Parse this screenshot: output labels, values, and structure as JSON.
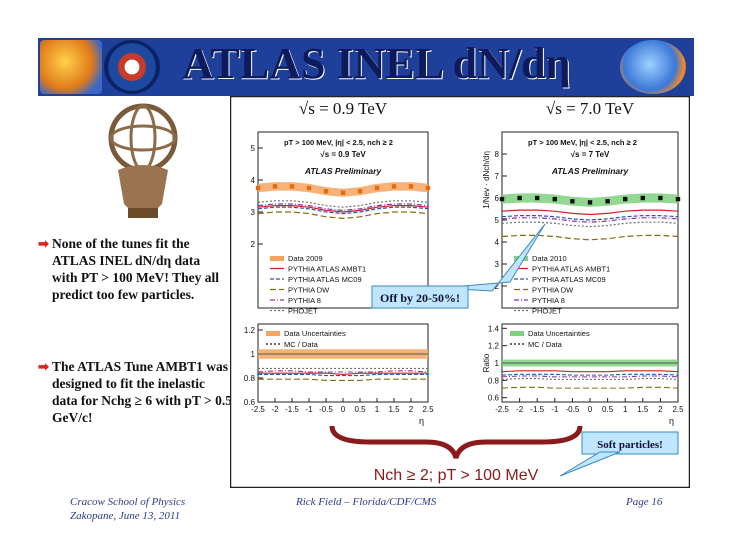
{
  "slide": {
    "title": "ATLAS INEL dN/dη",
    "bullets": [
      "None of the tunes fit the ATLAS INEL dN/dη data with PT > 100 MeV! They all predict too few particles.",
      "The ATLAS Tune AMBT1 was designed to fit the inelastic data for Nchg ≥ 6 with pT > 0.5 GeV/c!"
    ]
  },
  "footer": {
    "left_line1": "Cracow School of Physics",
    "left_line2": "Zakopane, June 13, 2011",
    "center": "Rick Field – Florida/CDF/CMS",
    "right": "Page 16"
  },
  "callouts": {
    "off_by": "Off by 20-50%!",
    "soft": "Soft particles!",
    "brace_label": "Nch ≥ 2; pT > 100 MeV"
  },
  "chart_data": [
    {
      "type": "line",
      "energy_label": "√s = 0.9 TeV",
      "cut_text": "pT > 100 MeV, |η| < 2.5, nch ≥ 2",
      "sqrt_text": "√s = 0.9 TeV",
      "prelim": "ATLAS Preliminary",
      "xlabel": "η",
      "ylabel": "",
      "xlim": [
        -2.5,
        2.5
      ],
      "ylim": [
        0,
        5.5
      ],
      "x": [
        -2.5,
        -2.0,
        -1.5,
        -1.0,
        -0.5,
        0.0,
        0.5,
        1.0,
        1.5,
        2.0,
        2.5
      ],
      "x_ticks": [
        "-2.5",
        "-2",
        "-1.5",
        "-1",
        "-0.5",
        "0",
        "0.5",
        "1",
        "1.5",
        "2",
        "2.5"
      ],
      "y_ticks": [
        "2",
        "3",
        "4",
        "5"
      ],
      "series": [
        {
          "name": "Data 2009",
          "values": [
            3.75,
            3.8,
            3.8,
            3.75,
            3.65,
            3.6,
            3.65,
            3.75,
            3.8,
            3.8,
            3.75
          ]
        },
        {
          "name": "PYTHIA ATLAS AMBT1",
          "values": [
            3.15,
            3.2,
            3.2,
            3.15,
            3.05,
            3.0,
            3.05,
            3.15,
            3.2,
            3.2,
            3.15
          ]
        },
        {
          "name": "PYTHIA ATLAS MC09",
          "values": [
            3.1,
            3.15,
            3.15,
            3.1,
            3.0,
            2.95,
            3.0,
            3.1,
            3.15,
            3.15,
            3.1
          ]
        },
        {
          "name": "PYTHIA DW",
          "values": [
            2.95,
            3.0,
            3.0,
            2.95,
            2.85,
            2.8,
            2.85,
            2.95,
            3.0,
            3.0,
            2.95
          ]
        },
        {
          "name": "PYTHIA 8",
          "values": [
            3.2,
            3.25,
            3.25,
            3.2,
            3.1,
            3.05,
            3.1,
            3.2,
            3.25,
            3.25,
            3.2
          ]
        },
        {
          "name": "PHOJET",
          "values": [
            3.3,
            3.35,
            3.35,
            3.3,
            3.2,
            3.15,
            3.2,
            3.3,
            3.35,
            3.35,
            3.3
          ]
        }
      ],
      "ratio": {
        "ylabel": "",
        "ylim": [
          0.6,
          1.25
        ],
        "y_ticks": [
          "0.6",
          "0.8",
          "1",
          "1.2"
        ],
        "legend": [
          "Data Uncertainties",
          "MC / Data"
        ],
        "series": [
          {
            "name": "PYTHIA ATLAS AMBT1",
            "values": [
              0.84,
              0.84,
              0.84,
              0.84,
              0.84,
              0.83,
              0.84,
              0.84,
              0.84,
              0.84,
              0.84
            ]
          },
          {
            "name": "PYTHIA ATLAS MC09",
            "values": [
              0.83,
              0.83,
              0.83,
              0.83,
              0.82,
              0.82,
              0.82,
              0.83,
              0.83,
              0.83,
              0.83
            ]
          },
          {
            "name": "PYTHIA DW",
            "values": [
              0.79,
              0.79,
              0.79,
              0.79,
              0.78,
              0.78,
              0.78,
              0.79,
              0.79,
              0.79,
              0.79
            ]
          },
          {
            "name": "PYTHIA 8",
            "values": [
              0.85,
              0.86,
              0.86,
              0.85,
              0.85,
              0.85,
              0.85,
              0.85,
              0.86,
              0.86,
              0.85
            ]
          },
          {
            "name": "PHOJET",
            "values": [
              0.88,
              0.88,
              0.88,
              0.88,
              0.88,
              0.88,
              0.88,
              0.88,
              0.88,
              0.88,
              0.88
            ]
          }
        ]
      },
      "colors": {
        "data": "#e26a10",
        "band": "#f4a460"
      }
    },
    {
      "type": "line",
      "energy_label": "√s = 7.0 TeV",
      "cut_text": "pT > 100 MeV, |η| < 2.5, nch ≥ 2",
      "sqrt_text": "√s = 7 TeV",
      "prelim": "ATLAS Preliminary",
      "xlabel": "η",
      "ylabel": "1/Nev · dNch/dη",
      "xlim": [
        -2.5,
        2.5
      ],
      "ylim": [
        1,
        9
      ],
      "x": [
        -2.5,
        -2.0,
        -1.5,
        -1.0,
        -0.5,
        0.0,
        0.5,
        1.0,
        1.5,
        2.0,
        2.5
      ],
      "x_ticks": [
        "-2.5",
        "-2",
        "-1.5",
        "-1",
        "-0.5",
        "0",
        "0.5",
        "1",
        "1.5",
        "2",
        "2.5"
      ],
      "y_ticks": [
        "2",
        "3",
        "4",
        "5",
        "6",
        "7",
        "8"
      ],
      "series": [
        {
          "name": "Data 2010",
          "values": [
            5.95,
            6.0,
            6.0,
            5.95,
            5.85,
            5.8,
            5.85,
            5.95,
            6.0,
            6.0,
            5.95
          ]
        },
        {
          "name": "PYTHIA ATLAS AMBT1",
          "values": [
            5.4,
            5.45,
            5.45,
            5.4,
            5.3,
            5.25,
            5.3,
            5.4,
            5.45,
            5.45,
            5.4
          ]
        },
        {
          "name": "PYTHIA ATLAS MC09",
          "values": [
            5.15,
            5.2,
            5.2,
            5.15,
            5.05,
            5.0,
            5.05,
            5.15,
            5.2,
            5.2,
            5.15
          ]
        },
        {
          "name": "PYTHIA DW",
          "values": [
            4.25,
            4.3,
            4.3,
            4.25,
            4.15,
            4.1,
            4.15,
            4.25,
            4.3,
            4.3,
            4.25
          ]
        },
        {
          "name": "PYTHIA 8",
          "values": [
            5.05,
            5.1,
            5.1,
            5.05,
            4.95,
            4.9,
            4.95,
            5.05,
            5.1,
            5.1,
            5.05
          ]
        },
        {
          "name": "PHOJET",
          "values": [
            4.85,
            4.9,
            4.9,
            4.85,
            4.75,
            4.7,
            4.75,
            4.85,
            4.9,
            4.9,
            4.85
          ]
        }
      ],
      "ratio": {
        "ylabel": "Ratio",
        "ylim": [
          0.55,
          1.45
        ],
        "y_ticks": [
          "0.6",
          "0.8",
          "1",
          "1.2",
          "1.4"
        ],
        "legend": [
          "Data Uncertainties",
          "MC / Data"
        ],
        "series": [
          {
            "name": "PYTHIA ATLAS AMBT1",
            "values": [
              0.9,
              0.91,
              0.91,
              0.91,
              0.9,
              0.9,
              0.9,
              0.91,
              0.91,
              0.91,
              0.9
            ]
          },
          {
            "name": "PYTHIA ATLAS MC09",
            "values": [
              0.86,
              0.87,
              0.87,
              0.87,
              0.86,
              0.86,
              0.86,
              0.87,
              0.87,
              0.87,
              0.86
            ]
          },
          {
            "name": "PYTHIA DW",
            "values": [
              0.71,
              0.72,
              0.72,
              0.71,
              0.71,
              0.71,
              0.71,
              0.71,
              0.72,
              0.72,
              0.71
            ]
          },
          {
            "name": "PYTHIA 8",
            "values": [
              0.84,
              0.85,
              0.85,
              0.84,
              0.84,
              0.84,
              0.84,
              0.84,
              0.85,
              0.85,
              0.84
            ]
          },
          {
            "name": "PHOJET",
            "values": [
              0.81,
              0.82,
              0.82,
              0.81,
              0.81,
              0.81,
              0.81,
              0.81,
              0.82,
              0.82,
              0.81
            ]
          }
        ]
      },
      "colors": {
        "data": "#111111",
        "band": "#7fd07f"
      }
    }
  ],
  "style": {
    "series_colors": {
      "PYTHIA ATLAS AMBT1": "#d0202a",
      "PYTHIA ATLAS MC09": "#3050c0",
      "PYTHIA DW": "#8a6a10",
      "PYTHIA 8": "#9030b0",
      "PHOJET": "#707070"
    },
    "header_bar": "#1e3f9a",
    "title_color": "#0d1a5c",
    "accent_red": "#e0201a",
    "brace_color": "#8b1a1a"
  }
}
